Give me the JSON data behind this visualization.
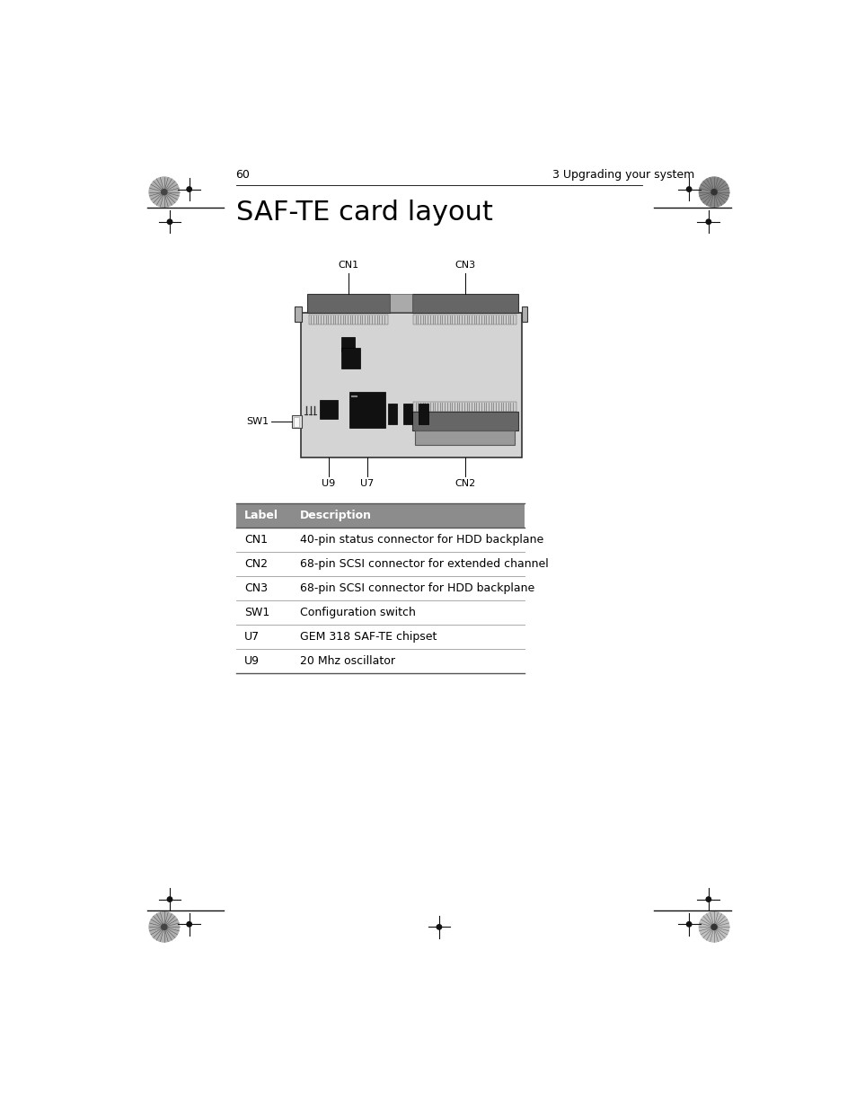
{
  "page_number": "60",
  "header_right": "3 Upgrading your system",
  "title": "SAF-TE card layout",
  "table_header": [
    "Label",
    "Description"
  ],
  "table_rows": [
    [
      "CN1",
      "40-pin status connector for HDD backplane"
    ],
    [
      "CN2",
      "68-pin SCSI connector for extended channel"
    ],
    [
      "CN3",
      "68-pin SCSI connector for HDD backplane"
    ],
    [
      "SW1",
      "Configuration switch"
    ],
    [
      "U7",
      "GEM 318 SAF-TE chipset"
    ],
    [
      "U9",
      "20 Mhz oscillator"
    ]
  ],
  "table_header_bg": "#8c8c8c",
  "board_bg": "#d4d4d4",
  "connector_dark": "#6a6a6a",
  "chip_color": "#111111",
  "board_outline": "#000000",
  "background_color": "#ffffff",
  "title_fontsize": 22,
  "header_fontsize": 9,
  "table_fontsize": 9,
  "label_fontsize": 8,
  "cn1_label": "CN1",
  "cn2_label": "CN2",
  "cn3_label": "CN3",
  "sw1_label": "SW1",
  "u7_label": "U7",
  "u9_label": "U9"
}
